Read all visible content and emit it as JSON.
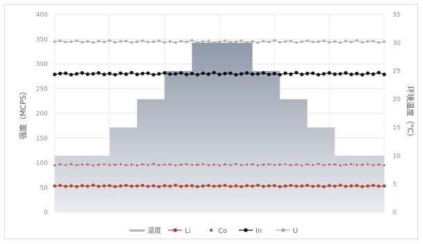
{
  "chart_data": {
    "type": "line",
    "ylabel_left": "强度（MCPS）",
    "ylabel_right": "环境温度（°C）",
    "y_left": {
      "min": 0,
      "max": 400,
      "ticks": [
        0,
        50,
        100,
        150,
        200,
        250,
        300,
        350,
        400
      ]
    },
    "y_right": {
      "min": 0,
      "max": 35,
      "ticks": [
        0,
        5,
        10,
        15,
        20,
        25,
        30,
        35
      ]
    },
    "x_categories": 60,
    "legend_position": "bottom",
    "grid": true,
    "series": [
      {
        "name": "温度",
        "type": "area",
        "axis": "right",
        "color": "#a9b2bf",
        "steps": [
          {
            "from": 0,
            "to": 10,
            "value": 10
          },
          {
            "from": 10,
            "to": 15,
            "value": 15
          },
          {
            "from": 15,
            "to": 20,
            "value": 20
          },
          {
            "from": 20,
            "to": 25,
            "value": 25
          },
          {
            "from": 25,
            "to": 36,
            "value": 30
          },
          {
            "from": 36,
            "to": 41,
            "value": 25
          },
          {
            "from": 41,
            "to": 46,
            "value": 20
          },
          {
            "from": 46,
            "to": 51,
            "value": 15
          },
          {
            "from": 51,
            "to": 60,
            "value": 10
          }
        ]
      },
      {
        "name": "Li",
        "type": "line",
        "axis": "left",
        "color": "#c0392b",
        "base": 53,
        "values": []
      },
      {
        "name": "Co",
        "type": "line",
        "axis": "left",
        "color": "#c0392b",
        "base": 96,
        "values": []
      },
      {
        "name": "In",
        "type": "line",
        "axis": "left",
        "color": "#111111",
        "base": 280,
        "values": []
      },
      {
        "name": "U",
        "type": "line",
        "axis": "left",
        "color": "#a8a8a8",
        "base": 345,
        "values": []
      }
    ]
  },
  "legend": [
    {
      "label": "温度",
      "swatch": "area",
      "color": "#a9b2bf"
    },
    {
      "label": "Li",
      "swatch": "line-dot",
      "color": "#c0392b"
    },
    {
      "label": "Co",
      "swatch": "dot",
      "color": "#c0392b"
    },
    {
      "label": "In",
      "swatch": "line-dot",
      "color": "#111111"
    },
    {
      "label": "U",
      "swatch": "line-dot",
      "color": "#a8a8a8"
    }
  ]
}
